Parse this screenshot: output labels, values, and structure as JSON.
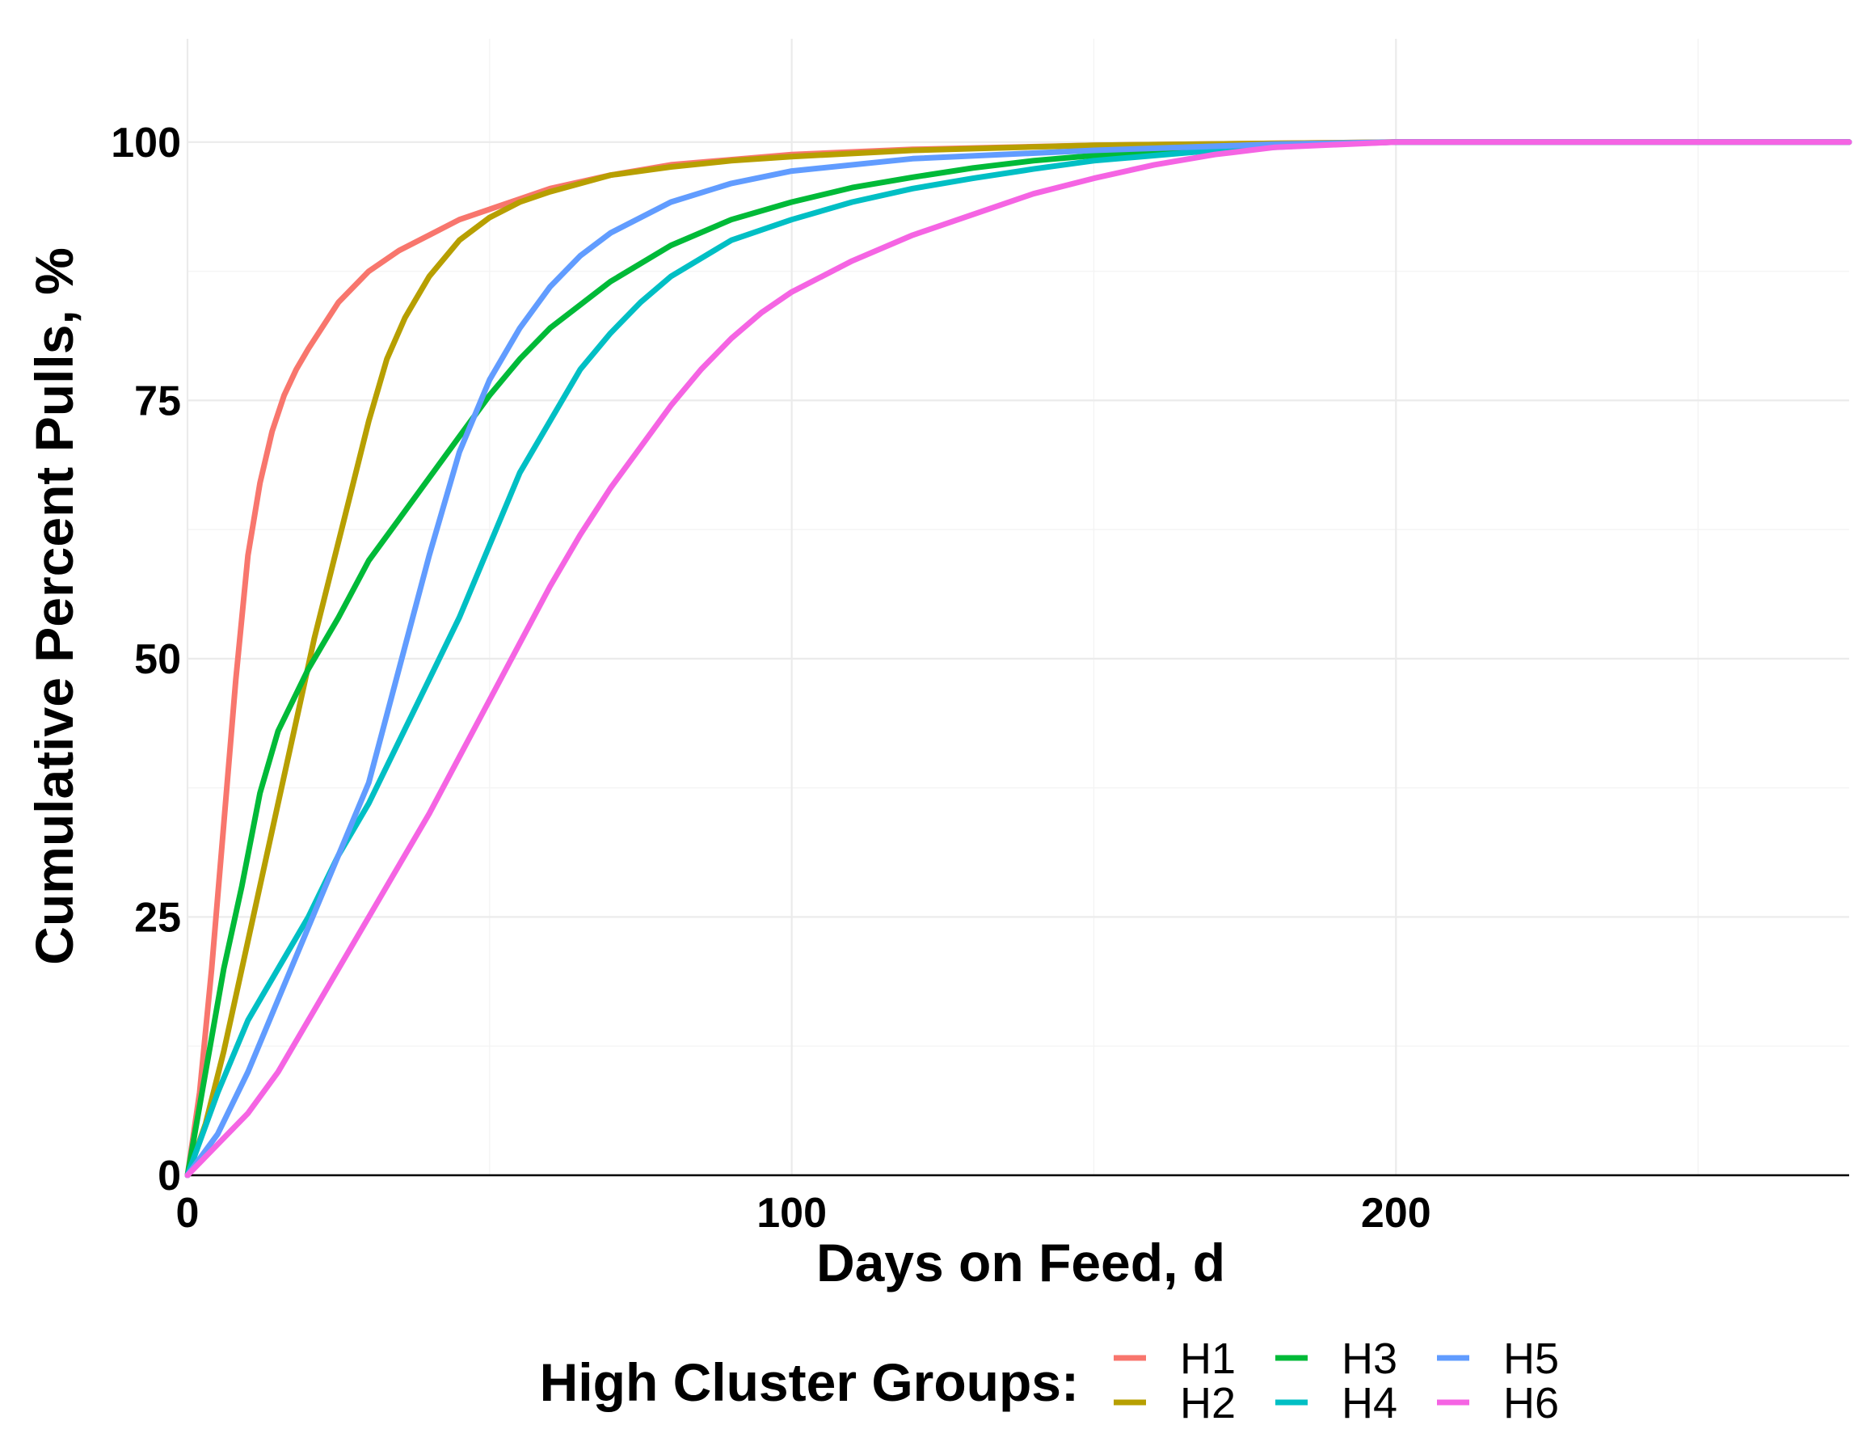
{
  "chart_data": {
    "type": "line",
    "title": "",
    "xlabel": "Days on Feed, d",
    "ylabel": "Cumulative Percent Pulls, %",
    "xlim": [
      0,
      275
    ],
    "ylim": [
      0,
      110
    ],
    "x_ticks": [
      0,
      100,
      200
    ],
    "x_minor_ticks": [
      50,
      150,
      250
    ],
    "y_ticks": [
      0,
      25,
      50,
      75,
      100
    ],
    "y_minor_ticks": [
      12.5,
      37.5,
      62.5,
      87.5
    ],
    "x_tick_labels": [
      "0",
      "100",
      "200"
    ],
    "y_tick_labels": [
      "0",
      "25",
      "50",
      "75",
      "100"
    ],
    "grid": true,
    "legend": {
      "title": "High Cluster Groups:",
      "position": "bottom"
    },
    "series": [
      {
        "name": "H1",
        "color": "#F8766D",
        "x": [
          0,
          2,
          4,
          6,
          8,
          10,
          12,
          14,
          16,
          18,
          20,
          25,
          30,
          35,
          40,
          45,
          50,
          60,
          70,
          80,
          100,
          120,
          150,
          200,
          275
        ],
        "y": [
          0,
          8,
          20,
          34,
          48,
          60,
          67,
          72,
          75.5,
          78,
          80,
          84.5,
          87.5,
          89.5,
          91,
          92.5,
          93.5,
          95.5,
          96.8,
          97.8,
          98.8,
          99.3,
          99.7,
          100,
          100
        ]
      },
      {
        "name": "H2",
        "color": "#B79F00",
        "x": [
          0,
          3,
          6,
          9,
          12,
          15,
          18,
          21,
          24,
          27,
          30,
          33,
          36,
          40,
          45,
          50,
          55,
          60,
          70,
          80,
          90,
          100,
          120,
          150,
          200,
          275
        ],
        "y": [
          0,
          5,
          12,
          20,
          28,
          36,
          44,
          52,
          59,
          66,
          73,
          79,
          83,
          87,
          90.5,
          92.7,
          94.2,
          95.2,
          96.8,
          97.6,
          98.2,
          98.6,
          99.2,
          99.7,
          100,
          100
        ]
      },
      {
        "name": "H3",
        "color": "#00BA38",
        "x": [
          0,
          3,
          6,
          9,
          12,
          15,
          20,
          25,
          30,
          35,
          40,
          45,
          50,
          55,
          60,
          70,
          80,
          90,
          100,
          110,
          120,
          130,
          140,
          150,
          170,
          200,
          275
        ],
        "y": [
          0,
          10,
          20,
          28,
          37,
          43,
          49,
          54,
          59.5,
          63.5,
          67.5,
          71.5,
          75.5,
          79,
          82,
          86.5,
          90,
          92.5,
          94.2,
          95.6,
          96.6,
          97.5,
          98.2,
          98.7,
          99.5,
          100,
          100
        ]
      },
      {
        "name": "H4",
        "color": "#00BFC4",
        "x": [
          0,
          5,
          10,
          15,
          20,
          25,
          30,
          35,
          40,
          45,
          50,
          55,
          60,
          65,
          70,
          75,
          80,
          90,
          100,
          110,
          120,
          130,
          140,
          150,
          170,
          190,
          200,
          275
        ],
        "y": [
          0,
          8,
          15,
          20,
          25,
          31,
          36,
          42,
          48,
          54,
          61,
          68,
          73,
          78,
          81.5,
          84.5,
          87,
          90.5,
          92.5,
          94.2,
          95.5,
          96.5,
          97.4,
          98.2,
          99.2,
          99.8,
          100,
          100
        ]
      },
      {
        "name": "H5",
        "color": "#619CFF",
        "x": [
          0,
          5,
          10,
          15,
          20,
          25,
          30,
          35,
          40,
          45,
          50,
          55,
          60,
          65,
          70,
          80,
          90,
          100,
          120,
          150,
          180,
          200,
          275
        ],
        "y": [
          0,
          4,
          10,
          17,
          24,
          31,
          38,
          49,
          60,
          70,
          77,
          82,
          86,
          89,
          91.2,
          94.2,
          96,
          97.2,
          98.4,
          99.2,
          99.8,
          100,
          100
        ]
      },
      {
        "name": "H6",
        "color": "#F564E3",
        "x": [
          0,
          5,
          10,
          15,
          20,
          25,
          30,
          35,
          40,
          45,
          50,
          55,
          60,
          65,
          70,
          75,
          80,
          85,
          90,
          95,
          100,
          110,
          120,
          130,
          140,
          150,
          160,
          170,
          180,
          200,
          275
        ],
        "y": [
          0,
          3,
          6,
          10,
          15,
          20,
          25,
          30,
          35,
          40.5,
          46,
          51.5,
          57,
          62,
          66.5,
          70.5,
          74.5,
          78,
          81,
          83.5,
          85.5,
          88.5,
          91,
          93,
          95,
          96.5,
          97.8,
          98.8,
          99.5,
          100,
          100
        ]
      }
    ]
  }
}
